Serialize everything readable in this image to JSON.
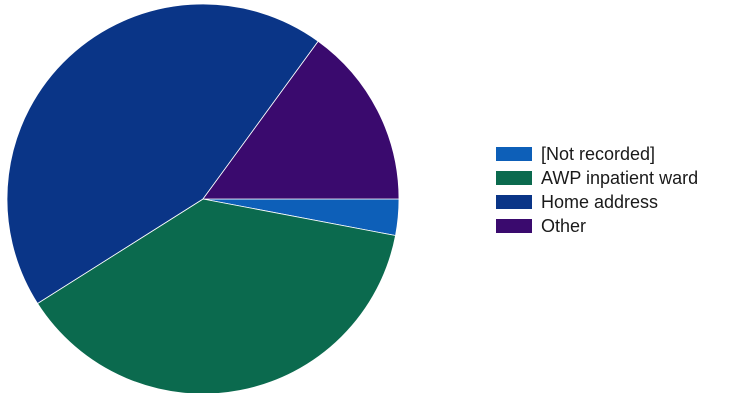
{
  "chart_data": {
    "type": "pie",
    "title": "",
    "start_angle_deg": 0,
    "direction": "clockwise",
    "slices": [
      {
        "label": "[Not recorded]",
        "value": 3,
        "color": "#0d5fb8"
      },
      {
        "label": "AWP inpatient ward",
        "value": 38,
        "color": "#0b6a4e"
      },
      {
        "label": "Home address",
        "value": 44,
        "color": "#0a3587"
      },
      {
        "label": "Other",
        "value": 15,
        "color": "#3a0a6e"
      }
    ],
    "legend_position": "right"
  },
  "legend": {
    "items": [
      {
        "label": "[Not recorded]",
        "color": "#0d5fb8"
      },
      {
        "label": "AWP inpatient ward",
        "color": "#0b6a4e"
      },
      {
        "label": "Home address",
        "color": "#0a3587"
      },
      {
        "label": "Other",
        "color": "#3a0a6e"
      }
    ]
  }
}
